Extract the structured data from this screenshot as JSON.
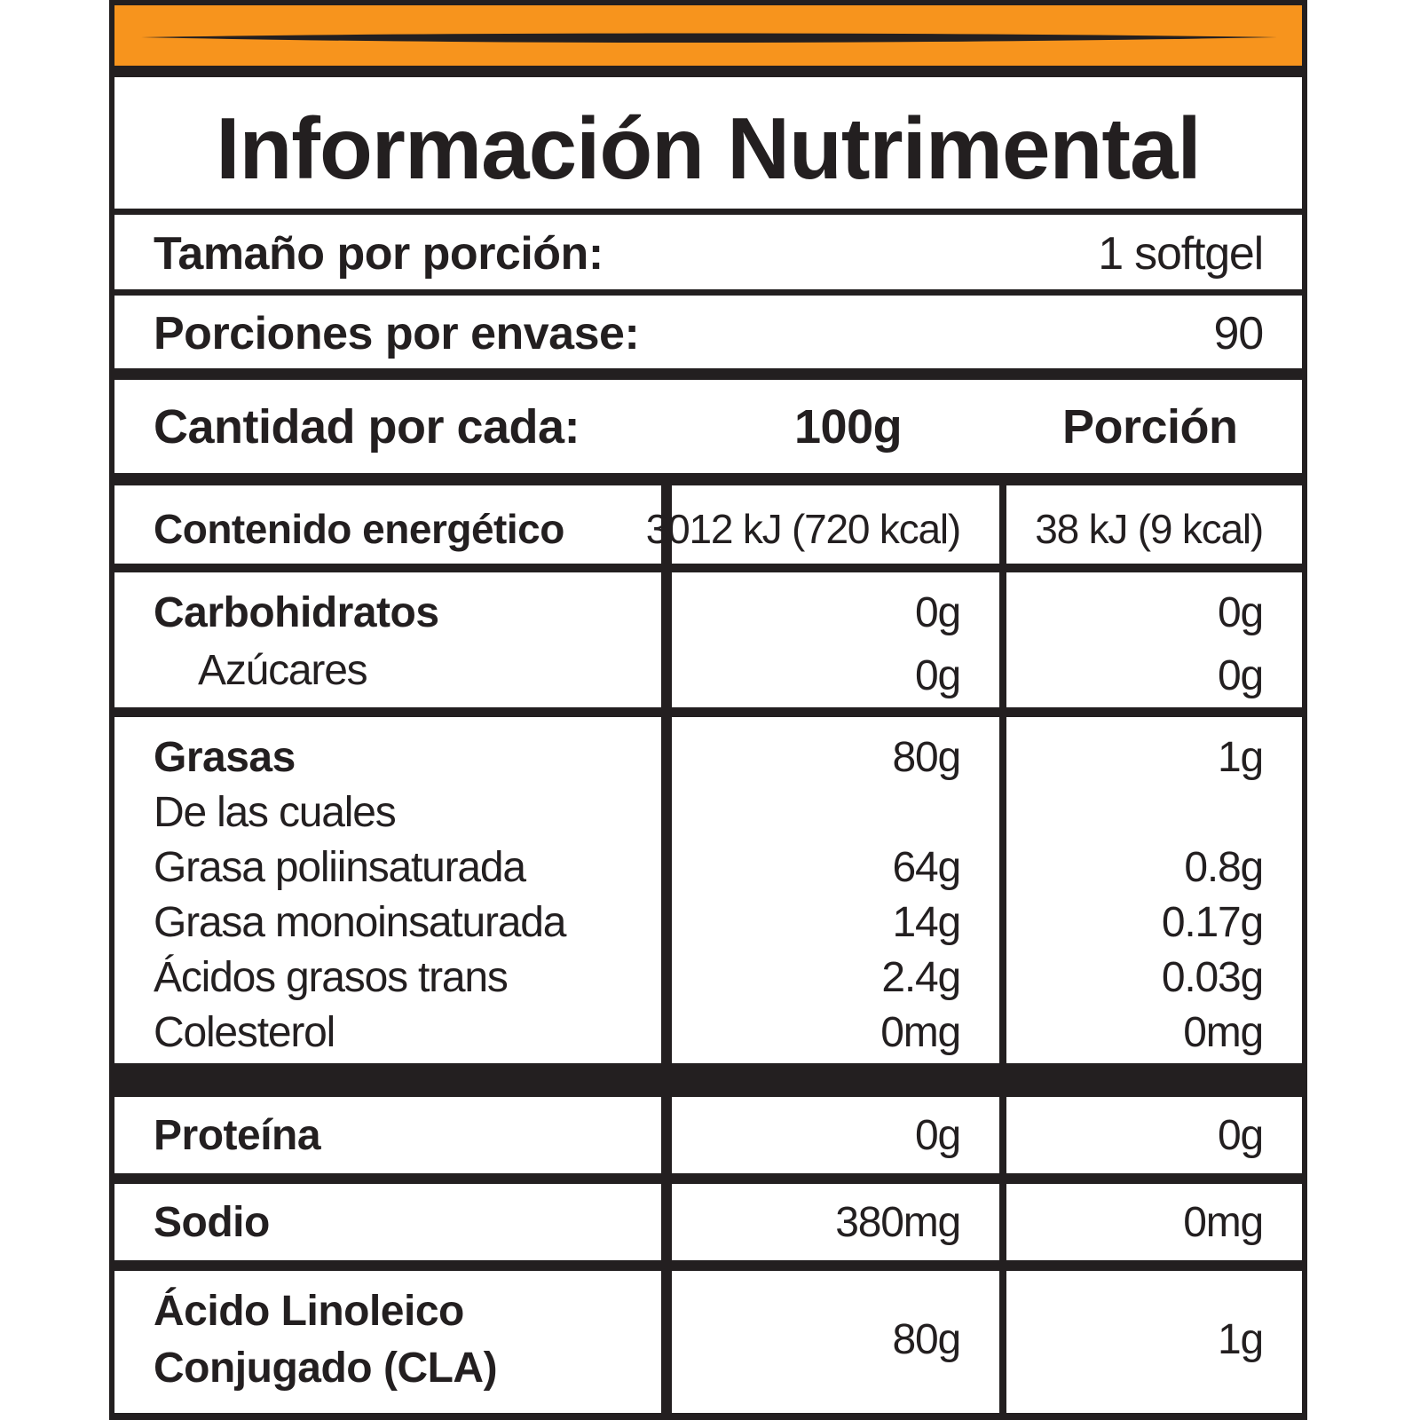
{
  "title": "Información Nutrimental",
  "serving_size": {
    "label": "Tamaño por porción:",
    "value": "1 softgel"
  },
  "servings_per_container": {
    "label": "Porciones por envase:",
    "value": "90"
  },
  "header": {
    "label": "Cantidad por cada:",
    "col_100g": "100g",
    "col_portion": "Porción"
  },
  "energy": {
    "label": "Contenido energético",
    "per_100g": "3012 kJ (720 kcal)",
    "per_portion": "38 kJ (9 kcal)"
  },
  "carbs": {
    "label": "Carbohidratos",
    "per_100g": "0g",
    "per_portion": "0g",
    "sugars": {
      "label": "Azúcares",
      "per_100g": "0g",
      "per_portion": "0g"
    }
  },
  "fats": {
    "label": "Grasas",
    "per_100g": "80g",
    "per_portion": "1g",
    "of_which": "De las cuales",
    "poly": {
      "label": "Grasa poliinsaturada",
      "per_100g": "64g",
      "per_portion": "0.8g"
    },
    "mono": {
      "label": "Grasa monoinsaturada",
      "per_100g": "14g",
      "per_portion": "0.17g"
    },
    "trans": {
      "label": "Ácidos grasos trans",
      "per_100g": "2.4g",
      "per_portion": "0.03g"
    },
    "cholesterol": {
      "label": "Colesterol",
      "per_100g": "0mg",
      "per_portion": "0mg"
    }
  },
  "protein": {
    "label": "Proteína",
    "per_100g": "0g",
    "per_portion": "0g"
  },
  "sodium": {
    "label": "Sodio",
    "per_100g": "380mg",
    "per_portion": "0mg"
  },
  "cla": {
    "label_line1": "Ácido Linoleico",
    "label_line2": "Conjugado (CLA)",
    "per_100g": "80g",
    "per_portion": "1g"
  },
  "colors": {
    "accent": "#f7941d",
    "ink": "#231f20",
    "background": "#ffffff"
  }
}
